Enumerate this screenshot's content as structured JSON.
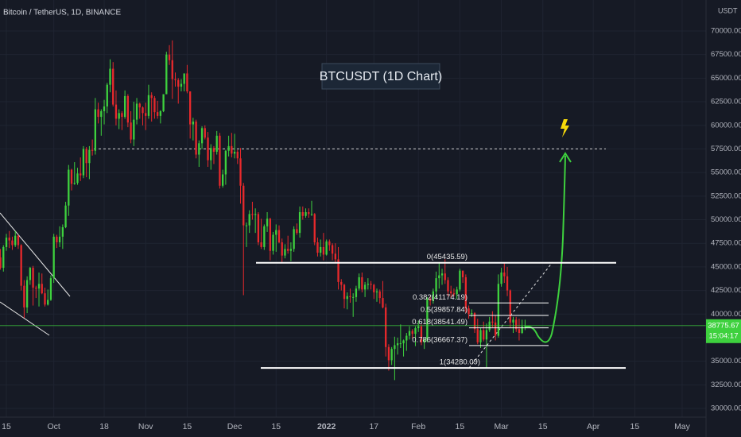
{
  "chart_data": {
    "type": "candlestick",
    "title": "Bitcoin / TetherUS, 1D, BINANCE",
    "annotation": "BTCUSDT (1D Chart)",
    "currency": "USDT",
    "up_color": "#3ed13e",
    "down_color": "#e8292c",
    "background": "#161a25",
    "grid_color": "#1f2431",
    "grid": true,
    "last_price": 38775.67,
    "countdown": "15:04:17",
    "price_line_color": "#3ed13e",
    "target_level": 57500,
    "fib_levels": [
      {
        "label": "0(45435.59)",
        "value": 45435.59
      },
      {
        "label": "0.382(41174.19)",
        "value": 41174.19
      },
      {
        "label": "0.5(39857.84)",
        "value": 39857.84
      },
      {
        "label": "0.618(38541.49)",
        "value": 38541.49
      },
      {
        "label": "0.786(36667.37)",
        "value": 36667.37
      },
      {
        "label": "1(34280.09)",
        "value": 34280.09
      }
    ],
    "ylim": [
      29074,
      73284
    ],
    "yticks": [
      {
        "value": 30000,
        "label": "30000.00"
      },
      {
        "value": 32500,
        "label": "32500.00"
      },
      {
        "value": 35000,
        "label": "35000.00"
      },
      {
        "value": 37500,
        "label": "37500.00"
      },
      {
        "value": 40000,
        "label": "40000.00"
      },
      {
        "value": 42500,
        "label": "42500.00"
      },
      {
        "value": 45000,
        "label": "45000.00"
      },
      {
        "value": 47500,
        "label": "47500.00"
      },
      {
        "value": 50000,
        "label": "50000.00"
      },
      {
        "value": 52500,
        "label": "52500.00"
      },
      {
        "value": 55000,
        "label": "55000.00"
      },
      {
        "value": 57500,
        "label": "57500.00"
      },
      {
        "value": 60000,
        "label": "60000.00"
      },
      {
        "value": 62500,
        "label": "62500.00"
      },
      {
        "value": 65000,
        "label": "65000.00"
      },
      {
        "value": 67500,
        "label": "67500.00"
      },
      {
        "value": 70000,
        "label": "70000.00"
      }
    ],
    "xlim": [
      -0.15,
      238.05
    ],
    "xticks": [
      {
        "value": 2,
        "label": "15"
      },
      {
        "value": 18,
        "label": "Oct"
      },
      {
        "value": 35,
        "label": "18"
      },
      {
        "value": 49,
        "label": "Nov"
      },
      {
        "value": 63,
        "label": "15"
      },
      {
        "value": 79,
        "label": "Dec"
      },
      {
        "value": 93,
        "label": "15"
      },
      {
        "value": 110,
        "label": "2022"
      },
      {
        "value": 126,
        "label": "17"
      },
      {
        "value": 141,
        "label": "Feb"
      },
      {
        "value": 155,
        "label": "15"
      },
      {
        "value": 169,
        "label": "Mar"
      },
      {
        "value": 183,
        "label": "15"
      },
      {
        "value": 200,
        "label": "Apr"
      },
      {
        "value": 214,
        "label": "15"
      },
      {
        "value": 230,
        "label": "May"
      }
    ],
    "candles": [
      [
        46000,
        46900,
        44700,
        44900
      ],
      [
        44900,
        47300,
        44500,
        47100
      ],
      [
        47100,
        48500,
        46700,
        48100
      ],
      [
        48100,
        48800,
        47000,
        47800
      ],
      [
        47800,
        48200,
        46800,
        47300
      ],
      [
        47300,
        48800,
        47100,
        48300
      ],
      [
        48300,
        48400,
        46900,
        47300
      ],
      [
        47300,
        47400,
        42500,
        43000
      ],
      [
        43000,
        43600,
        39600,
        40700
      ],
      [
        40700,
        44000,
        40100,
        43600
      ],
      [
        43600,
        45000,
        43100,
        44900
      ],
      [
        44900,
        45100,
        40900,
        42800
      ],
      [
        42800,
        43000,
        41700,
        42700
      ],
      [
        42700,
        44400,
        40800,
        43200
      ],
      [
        43200,
        44300,
        42100,
        42200
      ],
      [
        42200,
        42800,
        40800,
        41000
      ],
      [
        41000,
        42600,
        40900,
        41500
      ],
      [
        41500,
        44100,
        41400,
        43800
      ],
      [
        43800,
        48500,
        43300,
        48200
      ],
      [
        48200,
        48400,
        47000,
        47600
      ],
      [
        47600,
        49300,
        47100,
        48200
      ],
      [
        48200,
        49500,
        46900,
        49200
      ],
      [
        49200,
        51900,
        49100,
        51500
      ],
      [
        51500,
        55800,
        50400,
        55300
      ],
      [
        55300,
        55400,
        53100,
        53800
      ],
      [
        53800,
        56100,
        53700,
        53900
      ],
      [
        53900,
        55500,
        53700,
        54900
      ],
      [
        54900,
        56600,
        54100,
        54700
      ],
      [
        54700,
        57800,
        54400,
        57500
      ],
      [
        57500,
        57700,
        54500,
        56000
      ],
      [
        56000,
        57800,
        54300,
        57400
      ],
      [
        57400,
        58500,
        56800,
        57300
      ],
      [
        57300,
        62900,
        56900,
        61700
      ],
      [
        61700,
        62400,
        60200,
        60900
      ],
      [
        60900,
        61700,
        58900,
        61500
      ],
      [
        61500,
        62700,
        60100,
        62000
      ],
      [
        62000,
        64500,
        61300,
        64300
      ],
      [
        64300,
        67000,
        63500,
        66000
      ],
      [
        66000,
        66700,
        62000,
        62200
      ],
      [
        62200,
        63700,
        60000,
        60700
      ],
      [
        60700,
        61700,
        59600,
        61300
      ],
      [
        61300,
        61500,
        59500,
        60900
      ],
      [
        60900,
        63700,
        60700,
        63100
      ],
      [
        63100,
        63300,
        59800,
        60300
      ],
      [
        60300,
        61500,
        58100,
        58500
      ],
      [
        58500,
        62500,
        57800,
        60600
      ],
      [
        60600,
        62900,
        60100,
        62300
      ],
      [
        62300,
        62400,
        60700,
        61900
      ],
      [
        61900,
        62000,
        60000,
        61300
      ],
      [
        61300,
        62400,
        59500,
        61000
      ],
      [
        61000,
        64300,
        60700,
        63200
      ],
      [
        63200,
        63500,
        60400,
        62900
      ],
      [
        62900,
        63100,
        60700,
        61400
      ],
      [
        61400,
        62600,
        60700,
        61000
      ],
      [
        61000,
        61600,
        60200,
        61500
      ],
      [
        61500,
        63300,
        61400,
        63300
      ],
      [
        63300,
        67800,
        63300,
        67500
      ],
      [
        67500,
        68500,
        66400,
        66900
      ],
      [
        66900,
        69000,
        62800,
        64900
      ],
      [
        64900,
        65600,
        64100,
        64800
      ],
      [
        64800,
        65000,
        62300,
        64100
      ],
      [
        64100,
        64900,
        63600,
        64400
      ],
      [
        64400,
        65500,
        63600,
        65500
      ],
      [
        65500,
        66400,
        63400,
        63600
      ],
      [
        63600,
        63600,
        58600,
        60100
      ],
      [
        60100,
        60800,
        58400,
        60400
      ],
      [
        60400,
        60600,
        56500,
        56900
      ],
      [
        56900,
        58400,
        55600,
        58100
      ],
      [
        58100,
        59900,
        57500,
        59700
      ],
      [
        59700,
        60000,
        58500,
        58700
      ],
      [
        58700,
        59300,
        55600,
        56300
      ],
      [
        56300,
        58000,
        55300,
        57600
      ],
      [
        57600,
        57800,
        55900,
        57200
      ],
      [
        57200,
        59400,
        56900,
        58900
      ],
      [
        58900,
        59200,
        53300,
        53600
      ],
      [
        53600,
        55300,
        53400,
        54800
      ],
      [
        54800,
        57400,
        53700,
        57300
      ],
      [
        57300,
        58900,
        56700,
        57800
      ],
      [
        57800,
        59200,
        56600,
        57000
      ],
      [
        57000,
        59100,
        56500,
        57200
      ],
      [
        57200,
        57400,
        55900,
        56500
      ],
      [
        56500,
        57600,
        51700,
        53600
      ],
      [
        53600,
        53900,
        42000,
        49400
      ],
      [
        49400,
        49700,
        47100,
        49400
      ],
      [
        49400,
        51000,
        48600,
        50600
      ],
      [
        50600,
        51900,
        50000,
        50500
      ],
      [
        50500,
        51200,
        48600,
        50600
      ],
      [
        50600,
        50800,
        47300,
        47600
      ],
      [
        47600,
        50100,
        46900,
        47100
      ],
      [
        47100,
        49500,
        46800,
        49300
      ],
      [
        49300,
        50800,
        48700,
        50100
      ],
      [
        50100,
        50200,
        45700,
        46700
      ],
      [
        46700,
        48700,
        46300,
        48400
      ],
      [
        48400,
        49500,
        46600,
        48900
      ],
      [
        48900,
        49400,
        47500,
        47600
      ],
      [
        47600,
        48000,
        45500,
        46200
      ],
      [
        46200,
        47400,
        45900,
        46900
      ],
      [
        46900,
        48300,
        46400,
        46700
      ],
      [
        46700,
        47600,
        45600,
        46900
      ],
      [
        46900,
        49300,
        46600,
        49000
      ],
      [
        49000,
        49600,
        48400,
        48600
      ],
      [
        48600,
        51400,
        48100,
        50800
      ],
      [
        50800,
        51400,
        50000,
        50400
      ],
      [
        50400,
        51200,
        50200,
        50800
      ],
      [
        50800,
        51200,
        50200,
        50600
      ],
      [
        50600,
        52000,
        50400,
        50600
      ],
      [
        50600,
        50700,
        47300,
        47600
      ],
      [
        47600,
        48100,
        46100,
        46500
      ],
      [
        46500,
        47900,
        46100,
        47100
      ],
      [
        47100,
        48600,
        45700,
        46300
      ],
      [
        46300,
        47900,
        46200,
        47700
      ],
      [
        47700,
        47900,
        46700,
        47300
      ],
      [
        47300,
        47500,
        45700,
        46400
      ],
      [
        46400,
        47500,
        45500,
        45800
      ],
      [
        45800,
        47100,
        42600,
        43400
      ],
      [
        43400,
        43700,
        42500,
        43100
      ],
      [
        43100,
        43200,
        40600,
        41600
      ],
      [
        41600,
        42300,
        40500,
        41900
      ],
      [
        41900,
        42700,
        41200,
        41800
      ],
      [
        41800,
        42200,
        39700,
        41800
      ],
      [
        41800,
        43000,
        41300,
        42700
      ],
      [
        42700,
        44300,
        42500,
        43900
      ],
      [
        43900,
        44400,
        42300,
        42600
      ],
      [
        42600,
        43400,
        41800,
        43100
      ],
      [
        43100,
        43800,
        42600,
        43200
      ],
      [
        43200,
        43500,
        42600,
        43100
      ],
      [
        43100,
        43200,
        41600,
        42300
      ],
      [
        42300,
        42700,
        41300,
        42400
      ],
      [
        42400,
        42600,
        41100,
        41700
      ],
      [
        41700,
        43500,
        40600,
        40700
      ],
      [
        40700,
        41100,
        35500,
        36500
      ],
      [
        36500,
        36800,
        34000,
        35100
      ],
      [
        35100,
        36500,
        34600,
        36300
      ],
      [
        36300,
        37600,
        33000,
        36700
      ],
      [
        36700,
        37500,
        35700,
        36900
      ],
      [
        36900,
        38900,
        36400,
        36900
      ],
      [
        36900,
        37300,
        35500,
        37200
      ],
      [
        37200,
        38000,
        36100,
        37700
      ],
      [
        37700,
        38700,
        37300,
        38200
      ],
      [
        38200,
        38400,
        37400,
        37900
      ],
      [
        37900,
        38700,
        36600,
        38500
      ],
      [
        38500,
        39300,
        38100,
        38700
      ],
      [
        38700,
        38900,
        36700,
        37000
      ],
      [
        37000,
        37400,
        36300,
        37300
      ],
      [
        37300,
        41800,
        37000,
        41600
      ],
      [
        41600,
        41900,
        40900,
        41400
      ],
      [
        41400,
        42700,
        41100,
        42400
      ],
      [
        42400,
        44500,
        41700,
        43800
      ],
      [
        43800,
        45500,
        42700,
        44100
      ],
      [
        44100,
        44800,
        43100,
        44300
      ],
      [
        44300,
        45800,
        43200,
        43600
      ],
      [
        43600,
        43900,
        41900,
        42400
      ],
      [
        42400,
        43000,
        41700,
        42200
      ],
      [
        42200,
        42700,
        41900,
        42100
      ],
      [
        42100,
        42900,
        41600,
        42600
      ],
      [
        42600,
        44800,
        42400,
        44600
      ],
      [
        44600,
        44600,
        43300,
        43900
      ],
      [
        43900,
        44200,
        40100,
        40600
      ],
      [
        40600,
        40900,
        39500,
        40000
      ],
      [
        40000,
        40500,
        39700,
        40100
      ],
      [
        40100,
        40200,
        38000,
        38400
      ],
      [
        38400,
        39500,
        36800,
        37000
      ],
      [
        37000,
        38500,
        36400,
        38300
      ],
      [
        38300,
        39200,
        37100,
        37300
      ],
      [
        37300,
        39000,
        34300,
        38300
      ],
      [
        38300,
        39700,
        38100,
        39200
      ],
      [
        39200,
        40300,
        38600,
        39100
      ],
      [
        39100,
        39900,
        37200,
        37700
      ],
      [
        37700,
        44200,
        37500,
        43200
      ],
      [
        43200,
        44900,
        42900,
        44400
      ],
      [
        44400,
        45400,
        43300,
        44000
      ],
      [
        44000,
        45000,
        41900,
        42500
      ],
      [
        42500,
        42600,
        38600,
        39100
      ],
      [
        39100,
        39700,
        38000,
        39400
      ],
      [
        39400,
        39700,
        38100,
        38400
      ],
      [
        38400,
        39500,
        37200,
        38000
      ],
      [
        38000,
        39400,
        37900,
        38700
      ],
      [
        38700,
        39400,
        38300,
        38775.67
      ]
    ]
  }
}
